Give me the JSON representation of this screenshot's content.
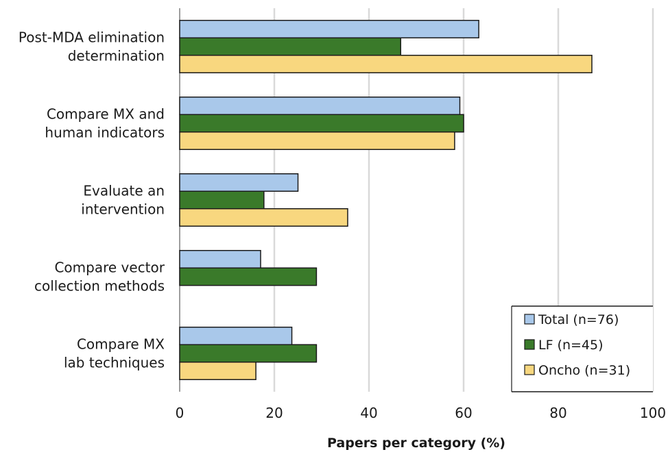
{
  "chart_data": {
    "type": "bar",
    "orientation": "horizontal",
    "categories": [
      [
        "Post-MDA elimination",
        "determination"
      ],
      [
        "Compare MX and",
        "human indicators"
      ],
      [
        "Evaluate an",
        "intervention"
      ],
      [
        "Compare vector",
        "collection methods"
      ],
      [
        "Compare MX",
        "lab techniques"
      ]
    ],
    "series": [
      {
        "name": "Total (n=76)",
        "color": "#a9c8ea",
        "values": [
          63.2,
          59.2,
          25.0,
          17.1,
          23.7
        ]
      },
      {
        "name": "LF (n=45)",
        "color": "#3a7a2a",
        "values": [
          46.7,
          60.0,
          17.8,
          28.9,
          28.9
        ]
      },
      {
        "name": "Oncho (n=31)",
        "color": "#f8d77f",
        "values": [
          87.1,
          58.1,
          35.5,
          0,
          16.1
        ]
      }
    ],
    "xlabel": "Papers per category (%)",
    "xlim": [
      0,
      100
    ],
    "xticks": [
      "0",
      "20",
      "40",
      "60",
      "80",
      "100"
    ],
    "grid": "vertical",
    "legend": "bottom-right"
  }
}
